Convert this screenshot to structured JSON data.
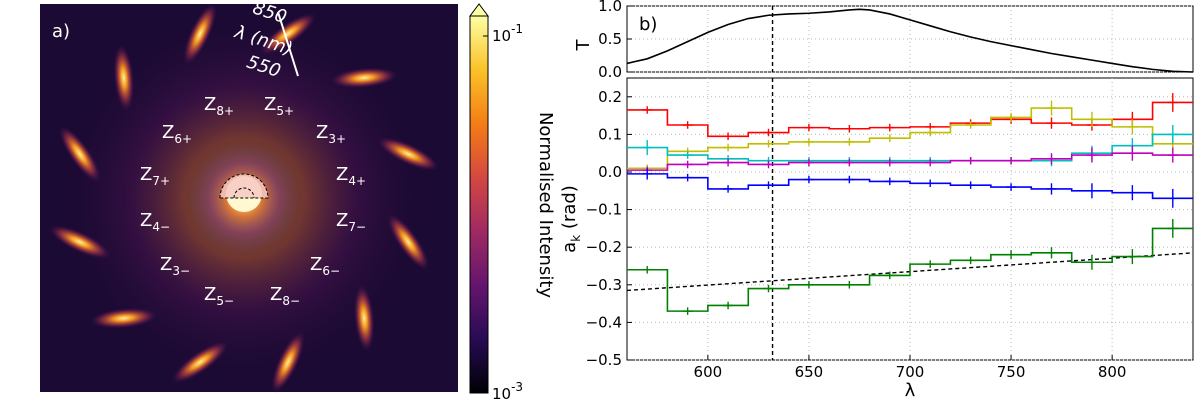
{
  "panel_a": {
    "label": "a)",
    "scale_top": "850",
    "scale_unit": "λ (nm)",
    "scale_bottom": "550",
    "zernike_labels": [
      {
        "base": "Z",
        "sub": "8+"
      },
      {
        "base": "Z",
        "sub": "5+"
      },
      {
        "base": "Z",
        "sub": "6+"
      },
      {
        "base": "Z",
        "sub": "3+"
      },
      {
        "base": "Z",
        "sub": "7+"
      },
      {
        "base": "Z",
        "sub": "4+"
      },
      {
        "base": "Z",
        "sub": "4−"
      },
      {
        "base": "Z",
        "sub": "7−"
      },
      {
        "base": "Z",
        "sub": "6−"
      },
      {
        "base": "Z",
        "sub": "3−"
      },
      {
        "base": "Z",
        "sub": "5−"
      },
      {
        "base": "Z",
        "sub": "8−"
      }
    ],
    "colorbar": {
      "label": "Normalised Intensity",
      "top": {
        "base": "10",
        "exp": "-1"
      },
      "bottom": {
        "base": "10",
        "exp": "-3"
      },
      "colors": [
        "#000004",
        "#280b54",
        "#65156e",
        "#9f2a63",
        "#d44842",
        "#f57d15",
        "#fac228",
        "#fcffa4"
      ]
    }
  },
  "chart_data": [
    {
      "type": "line",
      "panel": "b) top",
      "label": "b)",
      "ylabel": "T",
      "xlim": [
        560,
        840
      ],
      "ylim": [
        0.0,
        1.0
      ],
      "yticks": [
        "0.0",
        "0.5",
        "1.0"
      ],
      "series": [
        {
          "name": "T",
          "color": "#000000",
          "x": [
            560,
            570,
            580,
            590,
            600,
            610,
            620,
            630,
            640,
            650,
            660,
            670,
            675,
            680,
            690,
            700,
            710,
            720,
            730,
            740,
            750,
            760,
            770,
            780,
            790,
            800,
            810,
            820,
            830,
            840
          ],
          "y": [
            0.13,
            0.2,
            0.32,
            0.46,
            0.6,
            0.72,
            0.81,
            0.86,
            0.88,
            0.89,
            0.91,
            0.94,
            0.95,
            0.94,
            0.88,
            0.79,
            0.7,
            0.61,
            0.53,
            0.46,
            0.4,
            0.34,
            0.28,
            0.23,
            0.18,
            0.13,
            0.08,
            0.04,
            0.01,
            0.0
          ]
        }
      ],
      "vline": 632
    },
    {
      "type": "step",
      "panel": "b) bottom",
      "xlabel": "λ",
      "ylabel": {
        "base": "a",
        "sub": "k",
        "tail": " (rad)"
      },
      "xlim": [
        560,
        840
      ],
      "ylim": [
        -0.5,
        0.25
      ],
      "xticks": [
        "600",
        "650",
        "700",
        "750",
        "800"
      ],
      "yticks": [
        "−0.5",
        "−0.4",
        "−0.3",
        "−0.2",
        "−0.1",
        "0.0",
        "0.1",
        "0.2"
      ],
      "bin_edges": [
        560,
        580,
        600,
        620,
        640,
        660,
        680,
        700,
        720,
        740,
        760,
        780,
        800,
        820,
        840
      ],
      "vline": 632,
      "series": [
        {
          "name": "red",
          "color": "#ff0000",
          "values": [
            0.165,
            0.125,
            0.095,
            0.105,
            0.118,
            0.115,
            0.118,
            0.12,
            0.13,
            0.14,
            0.13,
            0.125,
            0.14,
            0.185
          ],
          "errors": [
            0.01,
            0.01,
            0.01,
            0.01,
            0.01,
            0.01,
            0.01,
            0.01,
            0.01,
            0.012,
            0.015,
            0.015,
            0.02,
            0.025
          ]
        },
        {
          "name": "yellow",
          "color": "#bfbf00",
          "values": [
            0.01,
            0.055,
            0.065,
            0.075,
            0.08,
            0.08,
            0.09,
            0.105,
            0.125,
            0.145,
            0.17,
            0.14,
            0.12,
            0.075
          ],
          "errors": [
            0.01,
            0.01,
            0.01,
            0.01,
            0.01,
            0.01,
            0.01,
            0.01,
            0.01,
            0.012,
            0.02,
            0.02,
            0.02,
            0.02
          ]
        },
        {
          "name": "cyan",
          "color": "#00bfbf",
          "values": [
            0.065,
            0.045,
            0.035,
            0.03,
            0.03,
            0.03,
            0.03,
            0.03,
            0.03,
            0.03,
            0.03,
            0.05,
            0.07,
            0.1
          ],
          "errors": [
            0.02,
            0.01,
            0.01,
            0.01,
            0.01,
            0.01,
            0.01,
            0.01,
            0.01,
            0.01,
            0.015,
            0.02,
            0.02,
            0.025
          ]
        },
        {
          "name": "magenta",
          "color": "#bf00bf",
          "values": [
            0.005,
            0.02,
            0.025,
            0.02,
            0.025,
            0.025,
            0.025,
            0.025,
            0.03,
            0.03,
            0.035,
            0.045,
            0.05,
            0.045
          ],
          "errors": [
            0.01,
            0.01,
            0.01,
            0.01,
            0.01,
            0.01,
            0.01,
            0.01,
            0.01,
            0.01,
            0.015,
            0.02,
            0.02,
            0.02
          ]
        },
        {
          "name": "blue",
          "color": "#0000ff",
          "values": [
            -0.005,
            -0.015,
            -0.045,
            -0.035,
            -0.02,
            -0.02,
            -0.025,
            -0.03,
            -0.035,
            -0.04,
            -0.045,
            -0.05,
            -0.055,
            -0.07
          ],
          "errors": [
            0.015,
            0.01,
            0.01,
            0.01,
            0.01,
            0.01,
            0.01,
            0.01,
            0.01,
            0.01,
            0.015,
            0.02,
            0.02,
            0.025
          ]
        },
        {
          "name": "green",
          "color": "#008000",
          "values": [
            -0.26,
            -0.37,
            -0.355,
            -0.31,
            -0.3,
            -0.3,
            -0.275,
            -0.245,
            -0.235,
            -0.22,
            -0.215,
            -0.24,
            -0.225,
            -0.15
          ],
          "errors": [
            0.01,
            0.01,
            0.01,
            0.01,
            0.01,
            0.01,
            0.01,
            0.01,
            0.01,
            0.012,
            0.015,
            0.02,
            0.02,
            0.025
          ]
        }
      ],
      "fit_line": {
        "color": "#000000",
        "x": [
          560,
          840
        ],
        "y": [
          -0.315,
          -0.215
        ]
      }
    }
  ]
}
